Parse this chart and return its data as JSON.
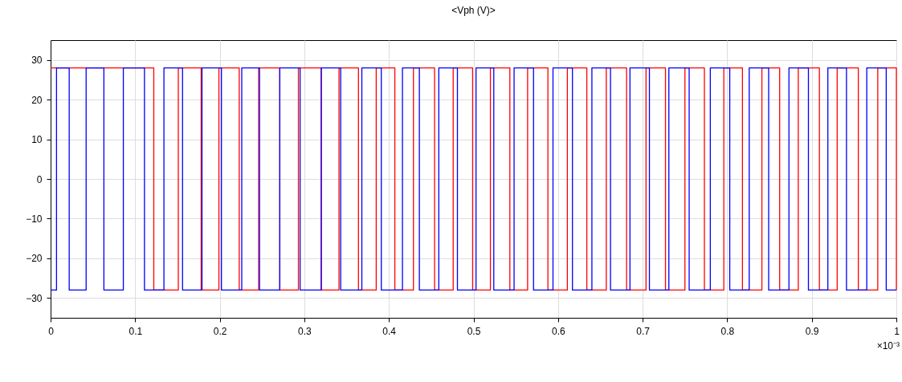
{
  "chart_data": {
    "type": "step",
    "title": "<Vph (V)>",
    "annotations": [
      "×10⁻³"
    ],
    "xlim": [
      0,
      1
    ],
    "xticks": [
      0,
      0.1,
      0.2,
      0.3,
      0.4,
      0.5,
      0.6,
      0.7,
      0.8,
      0.9,
      1
    ],
    "ylim": [
      -35,
      35
    ],
    "yticks": [
      -30,
      -20,
      -10,
      0,
      10,
      20,
      30
    ],
    "grid": true,
    "line_style": "solid",
    "series": [
      {
        "color": "#ff0000",
        "x": [
          0,
          0.122,
          0.151,
          0.178,
          0.199,
          0.223,
          0.246,
          0.271,
          0.293,
          0.32,
          0.341,
          0.364,
          0.385,
          0.407,
          0.429,
          0.454,
          0.476,
          0.499,
          0.52,
          0.543,
          0.564,
          0.588,
          0.611,
          0.634,
          0.657,
          0.681,
          0.704,
          0.727,
          0.75,
          0.773,
          0.796,
          0.818,
          0.841,
          0.862,
          0.884,
          0.909,
          0.93,
          0.955,
          0.978,
          1
        ],
        "values": [
          28,
          -28,
          28,
          -28,
          28,
          -28,
          28,
          -28,
          28,
          -28,
          28,
          -28,
          28,
          -28,
          28,
          -28,
          28,
          -28,
          28,
          -28,
          28,
          -28,
          28,
          -28,
          28,
          -28,
          28,
          -28,
          28,
          -28,
          28,
          -28,
          28,
          -28,
          28,
          -28,
          28,
          -28,
          28,
          -28
        ]
      },
      {
        "color": "#0000ff",
        "x": [
          0,
          0.007,
          0.022,
          0.042,
          0.063,
          0.086,
          0.111,
          0.134,
          0.156,
          0.179,
          0.202,
          0.226,
          0.247,
          0.271,
          0.295,
          0.32,
          0.343,
          0.368,
          0.391,
          0.416,
          0.436,
          0.459,
          0.481,
          0.503,
          0.524,
          0.548,
          0.571,
          0.594,
          0.617,
          0.64,
          0.662,
          0.685,
          0.708,
          0.731,
          0.755,
          0.78,
          0.803,
          0.826,
          0.849,
          0.873,
          0.896,
          0.919,
          0.941,
          0.965,
          0.988,
          1
        ],
        "values": [
          -28,
          28,
          -28,
          28,
          -28,
          28,
          -28,
          28,
          -28,
          28,
          -28,
          28,
          -28,
          28,
          -28,
          28,
          -28,
          28,
          -28,
          28,
          -28,
          28,
          -28,
          28,
          -28,
          28,
          -28,
          28,
          -28,
          28,
          -28,
          28,
          -28,
          28,
          -28,
          28,
          -28,
          28,
          -28,
          28,
          -28,
          28,
          -28,
          28,
          -28,
          -28
        ]
      }
    ]
  }
}
